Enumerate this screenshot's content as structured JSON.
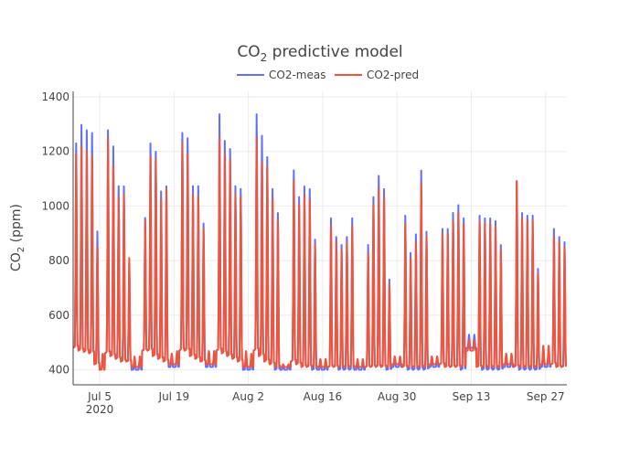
{
  "chart_data": {
    "type": "line",
    "title": {
      "main": "CO",
      "sub": "2",
      "rest": " predictive model"
    },
    "ylabel": {
      "main": "CO",
      "sub": "2",
      "rest": " (ppm)"
    },
    "xlabel": "",
    "x_start": "2020-06-30",
    "x_end": "2020-09-30",
    "ylim": [
      345,
      1420
    ],
    "yticks": [
      400,
      600,
      800,
      1000,
      1200,
      1400
    ],
    "ytick_labels": [
      "400",
      "600",
      "800",
      "1000",
      "1200",
      "1400"
    ],
    "xticks": [
      "2020-07-05",
      "2020-07-19",
      "2020-08-02",
      "2020-08-16",
      "2020-08-30",
      "2020-09-13",
      "2020-09-27"
    ],
    "xtick_labels": [
      "Jul 5",
      "Jul 19",
      "Aug 2",
      "Aug 16",
      "Aug 30",
      "Sep 13",
      "Sep 27"
    ],
    "xtick_sublabel": "2020",
    "grid": true,
    "legend": {
      "position": "top-center",
      "orientation": "horizontal"
    },
    "series": [
      {
        "name": "CO2-meas",
        "color": "#636efa",
        "daily": [
          [
            "2020-06-30",
            480,
            1250
          ],
          [
            "2020-07-01",
            470,
            1320
          ],
          [
            "2020-07-02",
            465,
            1300
          ],
          [
            "2020-07-03",
            460,
            1290
          ],
          [
            "2020-07-04",
            420,
            920
          ],
          [
            "2020-07-05",
            400,
            460
          ],
          [
            "2020-07-06",
            460,
            1300
          ],
          [
            "2020-07-07",
            450,
            1240
          ],
          [
            "2020-07-08",
            440,
            1090
          ],
          [
            "2020-07-09",
            430,
            1090
          ],
          [
            "2020-07-10",
            430,
            800
          ],
          [
            "2020-07-11",
            400,
            440
          ],
          [
            "2020-07-12",
            400,
            450
          ],
          [
            "2020-07-13",
            470,
            970
          ],
          [
            "2020-07-14",
            470,
            1250
          ],
          [
            "2020-07-15",
            450,
            1220
          ],
          [
            "2020-07-16",
            440,
            1070
          ],
          [
            "2020-07-17",
            430,
            1090
          ],
          [
            "2020-07-18",
            410,
            460
          ],
          [
            "2020-07-19",
            410,
            470
          ],
          [
            "2020-07-20",
            470,
            1290
          ],
          [
            "2020-07-21",
            470,
            1270
          ],
          [
            "2020-07-22",
            450,
            1090
          ],
          [
            "2020-07-23",
            440,
            1090
          ],
          [
            "2020-07-24",
            430,
            950
          ],
          [
            "2020-07-25",
            410,
            470
          ],
          [
            "2020-07-26",
            410,
            470
          ],
          [
            "2020-07-27",
            470,
            1360
          ],
          [
            "2020-07-28",
            460,
            1260
          ],
          [
            "2020-07-29",
            450,
            1230
          ],
          [
            "2020-07-30",
            440,
            1090
          ],
          [
            "2020-07-31",
            430,
            1080
          ],
          [
            "2020-08-01",
            400,
            470
          ],
          [
            "2020-08-02",
            400,
            460
          ],
          [
            "2020-08-03",
            470,
            1360
          ],
          [
            "2020-08-04",
            450,
            1280
          ],
          [
            "2020-08-05",
            430,
            1200
          ],
          [
            "2020-08-06",
            420,
            1080
          ],
          [
            "2020-08-07",
            400,
            990
          ],
          [
            "2020-08-08",
            400,
            420
          ],
          [
            "2020-08-09",
            400,
            420
          ],
          [
            "2020-08-10",
            430,
            1150
          ],
          [
            "2020-08-11",
            420,
            1050
          ],
          [
            "2020-08-12",
            410,
            1090
          ],
          [
            "2020-08-13",
            410,
            1080
          ],
          [
            "2020-08-14",
            400,
            890
          ],
          [
            "2020-08-15",
            400,
            440
          ],
          [
            "2020-08-16",
            400,
            440
          ],
          [
            "2020-08-17",
            410,
            970
          ],
          [
            "2020-08-18",
            410,
            900
          ],
          [
            "2020-08-19",
            400,
            870
          ],
          [
            "2020-08-20",
            400,
            900
          ],
          [
            "2020-08-21",
            400,
            970
          ],
          [
            "2020-08-22",
            400,
            440
          ],
          [
            "2020-08-23",
            400,
            440
          ],
          [
            "2020-08-24",
            410,
            870
          ],
          [
            "2020-08-25",
            410,
            1050
          ],
          [
            "2020-08-26",
            410,
            1130
          ],
          [
            "2020-08-27",
            410,
            1080
          ],
          [
            "2020-08-28",
            400,
            740
          ],
          [
            "2020-08-29",
            410,
            450
          ],
          [
            "2020-08-30",
            410,
            450
          ],
          [
            "2020-08-31",
            410,
            980
          ],
          [
            "2020-09-01",
            400,
            840
          ],
          [
            "2020-09-02",
            400,
            910
          ],
          [
            "2020-09-03",
            400,
            1150
          ],
          [
            "2020-09-04",
            400,
            920
          ],
          [
            "2020-09-05",
            410,
            450
          ],
          [
            "2020-09-06",
            410,
            450
          ],
          [
            "2020-09-07",
            420,
            930
          ],
          [
            "2020-09-08",
            410,
            930
          ],
          [
            "2020-09-09",
            410,
            990
          ],
          [
            "2020-09-10",
            410,
            1020
          ],
          [
            "2020-09-11",
            400,
            970
          ],
          [
            "2020-09-12",
            480,
            530
          ],
          [
            "2020-09-13",
            480,
            530
          ],
          [
            "2020-09-14",
            410,
            980
          ],
          [
            "2020-09-15",
            400,
            970
          ],
          [
            "2020-09-16",
            400,
            970
          ],
          [
            "2020-09-17",
            400,
            960
          ],
          [
            "2020-09-18",
            400,
            870
          ],
          [
            "2020-09-19",
            410,
            460
          ],
          [
            "2020-09-20",
            410,
            460
          ],
          [
            "2020-09-21",
            410,
            1110
          ],
          [
            "2020-09-22",
            400,
            990
          ],
          [
            "2020-09-23",
            400,
            980
          ],
          [
            "2020-09-24",
            400,
            980
          ],
          [
            "2020-09-25",
            400,
            780
          ],
          [
            "2020-09-26",
            410,
            490
          ],
          [
            "2020-09-27",
            410,
            490
          ],
          [
            "2020-09-28",
            420,
            930
          ],
          [
            "2020-09-29",
            410,
            900
          ],
          [
            "2020-09-30",
            410,
            880
          ]
        ]
      },
      {
        "name": "CO2-pred",
        "color": "#ef553b",
        "daily": [
          [
            "2020-06-30",
            480,
            1210
          ],
          [
            "2020-07-01",
            470,
            1240
          ],
          [
            "2020-07-02",
            465,
            1220
          ],
          [
            "2020-07-03",
            460,
            1200
          ],
          [
            "2020-07-04",
            420,
            860
          ],
          [
            "2020-07-05",
            400,
            460
          ],
          [
            "2020-07-06",
            460,
            1270
          ],
          [
            "2020-07-07",
            450,
            1170
          ],
          [
            "2020-07-08",
            440,
            1050
          ],
          [
            "2020-07-09",
            430,
            1060
          ],
          [
            "2020-07-10",
            430,
            820
          ],
          [
            "2020-07-11",
            410,
            450
          ],
          [
            "2020-07-12",
            410,
            450
          ],
          [
            "2020-07-13",
            470,
            960
          ],
          [
            "2020-07-14",
            470,
            1200
          ],
          [
            "2020-07-15",
            450,
            1190
          ],
          [
            "2020-07-16",
            440,
            1040
          ],
          [
            "2020-07-17",
            430,
            1080
          ],
          [
            "2020-07-18",
            420,
            460
          ],
          [
            "2020-07-19",
            420,
            470
          ],
          [
            "2020-07-20",
            470,
            1250
          ],
          [
            "2020-07-21",
            470,
            1210
          ],
          [
            "2020-07-22",
            450,
            1060
          ],
          [
            "2020-07-23",
            440,
            1050
          ],
          [
            "2020-07-24",
            430,
            930
          ],
          [
            "2020-07-25",
            420,
            470
          ],
          [
            "2020-07-26",
            420,
            470
          ],
          [
            "2020-07-27",
            470,
            1270
          ],
          [
            "2020-07-28",
            460,
            1210
          ],
          [
            "2020-07-29",
            450,
            1190
          ],
          [
            "2020-07-30",
            440,
            1060
          ],
          [
            "2020-07-31",
            430,
            1050
          ],
          [
            "2020-08-01",
            410,
            470
          ],
          [
            "2020-08-02",
            410,
            460
          ],
          [
            "2020-08-03",
            470,
            1270
          ],
          [
            "2020-08-04",
            450,
            1180
          ],
          [
            "2020-08-05",
            430,
            1160
          ],
          [
            "2020-08-06",
            420,
            1040
          ],
          [
            "2020-08-07",
            410,
            960
          ],
          [
            "2020-08-08",
            410,
            420
          ],
          [
            "2020-08-09",
            410,
            420
          ],
          [
            "2020-08-10",
            430,
            1110
          ],
          [
            "2020-08-11",
            420,
            1020
          ],
          [
            "2020-08-12",
            410,
            1060
          ],
          [
            "2020-08-13",
            410,
            1040
          ],
          [
            "2020-08-14",
            410,
            870
          ],
          [
            "2020-08-15",
            410,
            440
          ],
          [
            "2020-08-16",
            410,
            440
          ],
          [
            "2020-08-17",
            410,
            940
          ],
          [
            "2020-08-18",
            410,
            880
          ],
          [
            "2020-08-19",
            410,
            850
          ],
          [
            "2020-08-20",
            410,
            880
          ],
          [
            "2020-08-21",
            410,
            940
          ],
          [
            "2020-08-22",
            410,
            440
          ],
          [
            "2020-08-23",
            410,
            440
          ],
          [
            "2020-08-24",
            410,
            840
          ],
          [
            "2020-08-25",
            410,
            1020
          ],
          [
            "2020-08-26",
            410,
            1080
          ],
          [
            "2020-08-27",
            410,
            1050
          ],
          [
            "2020-08-28",
            410,
            720
          ],
          [
            "2020-08-29",
            420,
            450
          ],
          [
            "2020-08-30",
            420,
            450
          ],
          [
            "2020-08-31",
            410,
            950
          ],
          [
            "2020-09-01",
            410,
            820
          ],
          [
            "2020-09-02",
            410,
            880
          ],
          [
            "2020-09-03",
            410,
            1100
          ],
          [
            "2020-09-04",
            410,
            900
          ],
          [
            "2020-09-05",
            420,
            450
          ],
          [
            "2020-09-06",
            420,
            450
          ],
          [
            "2020-09-07",
            420,
            910
          ],
          [
            "2020-09-08",
            410,
            910
          ],
          [
            "2020-09-09",
            410,
            960
          ],
          [
            "2020-09-10",
            410,
            990
          ],
          [
            "2020-09-11",
            410,
            950
          ],
          [
            "2020-09-12",
            470,
            510
          ],
          [
            "2020-09-13",
            470,
            510
          ],
          [
            "2020-09-14",
            410,
            960
          ],
          [
            "2020-09-15",
            410,
            950
          ],
          [
            "2020-09-16",
            410,
            950
          ],
          [
            "2020-09-17",
            410,
            940
          ],
          [
            "2020-09-18",
            410,
            850
          ],
          [
            "2020-09-19",
            420,
            460
          ],
          [
            "2020-09-20",
            420,
            460
          ],
          [
            "2020-09-21",
            410,
            1110
          ],
          [
            "2020-09-22",
            410,
            970
          ],
          [
            "2020-09-23",
            410,
            960
          ],
          [
            "2020-09-24",
            410,
            960
          ],
          [
            "2020-09-25",
            410,
            760
          ],
          [
            "2020-09-26",
            420,
            490
          ],
          [
            "2020-09-27",
            420,
            490
          ],
          [
            "2020-09-28",
            420,
            900
          ],
          [
            "2020-09-29",
            410,
            880
          ],
          [
            "2020-09-30",
            410,
            860
          ]
        ]
      }
    ]
  }
}
